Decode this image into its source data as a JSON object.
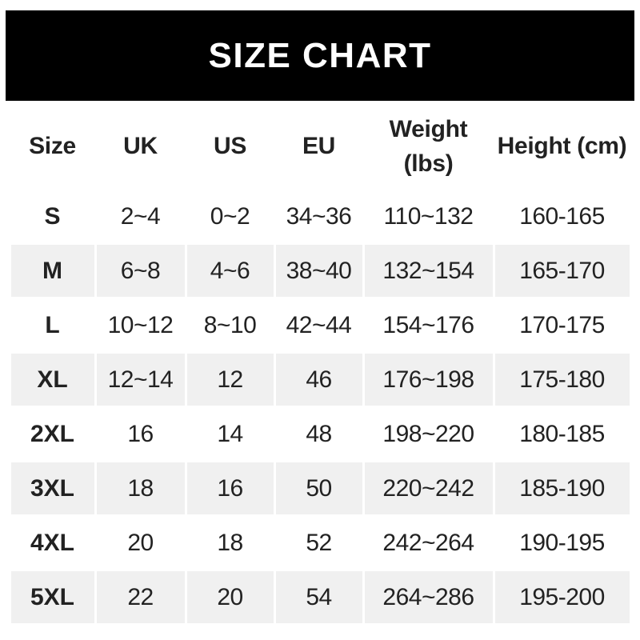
{
  "chart_data": {
    "type": "table",
    "title": "SIZE CHART",
    "columns": [
      "Size",
      "UK",
      "US",
      "EU",
      "Weight (lbs)",
      "Height (cm)"
    ],
    "rows": [
      {
        "size": "S",
        "uk": "2~4",
        "us": "0~2",
        "eu": "34~36",
        "weight_lbs": "110~132",
        "height_cm": "160-165"
      },
      {
        "size": "M",
        "uk": "6~8",
        "us": "4~6",
        "eu": "38~40",
        "weight_lbs": "132~154",
        "height_cm": "165-170"
      },
      {
        "size": "L",
        "uk": "10~12",
        "us": "8~10",
        "eu": "42~44",
        "weight_lbs": "154~176",
        "height_cm": "170-175"
      },
      {
        "size": "XL",
        "uk": "12~14",
        "us": "12",
        "eu": "46",
        "weight_lbs": "176~198",
        "height_cm": "175-180"
      },
      {
        "size": "2XL",
        "uk": "16",
        "us": "14",
        "eu": "48",
        "weight_lbs": "198~220",
        "height_cm": "180-185"
      },
      {
        "size": "3XL",
        "uk": "18",
        "us": "16",
        "eu": "50",
        "weight_lbs": "220~242",
        "height_cm": "185-190"
      },
      {
        "size": "4XL",
        "uk": "20",
        "us": "18",
        "eu": "52",
        "weight_lbs": "242~264",
        "height_cm": "190-195"
      },
      {
        "size": "5XL",
        "uk": "22",
        "us": "20",
        "eu": "54",
        "weight_lbs": "264~286",
        "height_cm": "195-200"
      }
    ]
  },
  "colors": {
    "banner_bg": "#000000",
    "banner_text": "#ffffff",
    "row_shade": "#f0f0f0",
    "text": "#222222",
    "page_bg": "#ffffff"
  }
}
